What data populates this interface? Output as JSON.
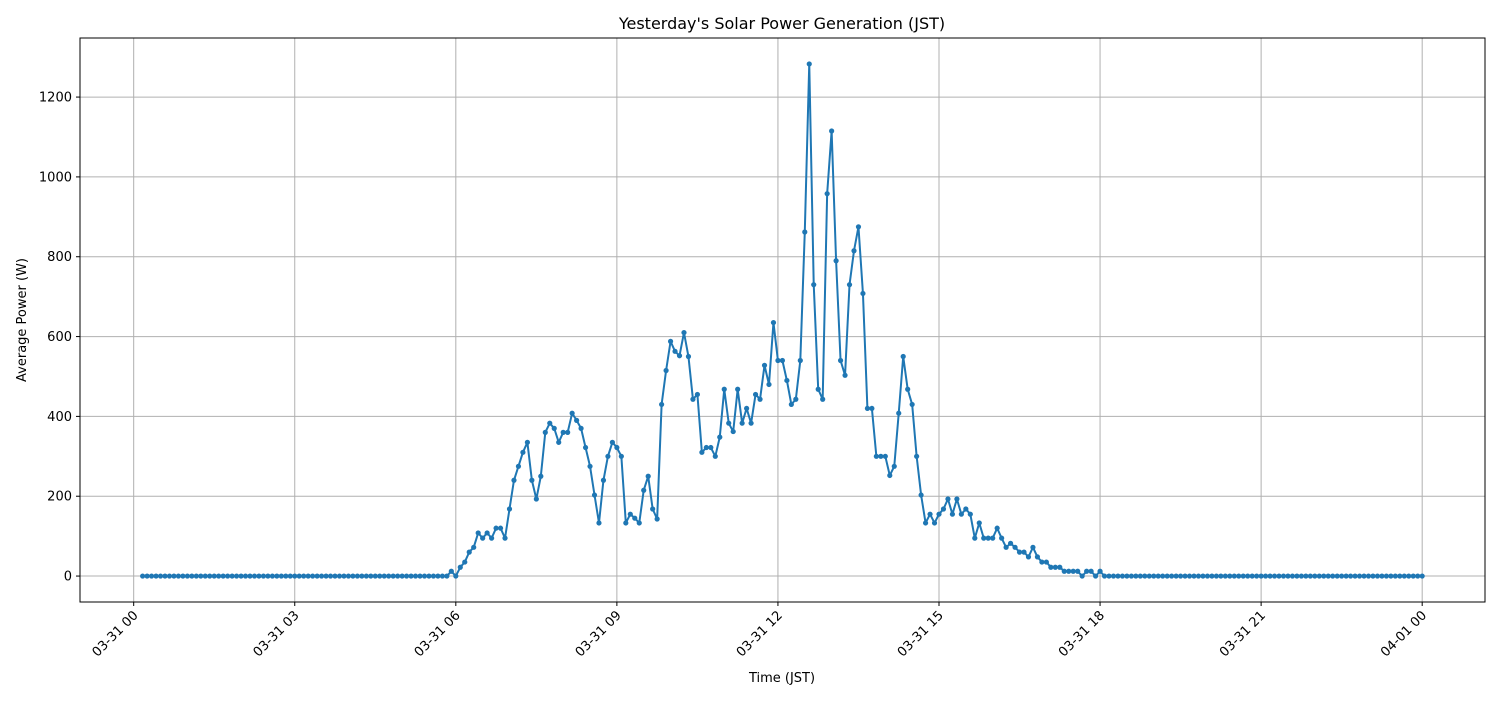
{
  "chart_data": {
    "type": "line",
    "title": "Yesterday's Solar Power Generation (JST)",
    "xlabel": "Time (JST)",
    "ylabel": "Average Power (W)",
    "x_start": "03-31 00:10",
    "x_step_minutes": 5,
    "x_tick_labels": [
      "03-31 00",
      "03-31 03",
      "03-31 06",
      "03-31 09",
      "03-31 12",
      "03-31 15",
      "03-31 18",
      "03-31 21",
      "04-01 00"
    ],
    "y_ticks": [
      0,
      200,
      400,
      600,
      800,
      1000,
      1200
    ],
    "xlim_hours": [
      -1.0,
      25.17
    ],
    "ylim": [
      -65,
      1348
    ],
    "grid": true,
    "marker": "circle",
    "color": "#1f77b4",
    "values": [
      0,
      0,
      0,
      0,
      0,
      0,
      0,
      0,
      0,
      0,
      0,
      0,
      0,
      0,
      0,
      0,
      0,
      0,
      0,
      0,
      0,
      0,
      0,
      0,
      0,
      0,
      0,
      0,
      0,
      0,
      0,
      0,
      0,
      0,
      0,
      0,
      0,
      0,
      0,
      0,
      0,
      0,
      0,
      0,
      0,
      0,
      0,
      0,
      0,
      0,
      0,
      0,
      0,
      0,
      0,
      0,
      0,
      0,
      0,
      0,
      0,
      0,
      0,
      0,
      0,
      0,
      0,
      0,
      0,
      12,
      0,
      22,
      35,
      60,
      72,
      108,
      95,
      108,
      95,
      120,
      120,
      95,
      168,
      240,
      275,
      310,
      335,
      240,
      193,
      250,
      360,
      383,
      370,
      335,
      360,
      360,
      408,
      390,
      370,
      322,
      275,
      203,
      133,
      240,
      300,
      335,
      322,
      300,
      133,
      155,
      145,
      133,
      215,
      250,
      168,
      143,
      430,
      515,
      588,
      563,
      552,
      610,
      550,
      443,
      455,
      310,
      322,
      322,
      300,
      348,
      468,
      383,
      362,
      468,
      383,
      420,
      383,
      455,
      443,
      528,
      480,
      635,
      540,
      540,
      490,
      430,
      443,
      540,
      862,
      1283,
      730,
      468,
      443,
      958,
      1115,
      790,
      540,
      503,
      730,
      815,
      875,
      708,
      420,
      420,
      300,
      300,
      300,
      252,
      275,
      408,
      550,
      468,
      430,
      300,
      203,
      133,
      155,
      133,
      155,
      168,
      193,
      155,
      193,
      155,
      168,
      155,
      95,
      133,
      95,
      95,
      95,
      120,
      95,
      72,
      82,
      72,
      60,
      60,
      48,
      72,
      48,
      35,
      35,
      22,
      22,
      22,
      12,
      12,
      12,
      12,
      0,
      12,
      12,
      0,
      12,
      0,
      0,
      0,
      0,
      0,
      0,
      0,
      0,
      0,
      0,
      0,
      0,
      0,
      0,
      0,
      0,
      0,
      0,
      0,
      0,
      0,
      0,
      0,
      0,
      0,
      0,
      0,
      0,
      0,
      0,
      0,
      0,
      0,
      0,
      0,
      0,
      0,
      0,
      0,
      0,
      0,
      0,
      0,
      0,
      0,
      0,
      0,
      0,
      0,
      0,
      0,
      0,
      0,
      0,
      0,
      0,
      0,
      0,
      0,
      0,
      0,
      0,
      0,
      0,
      0,
      0,
      0,
      0,
      0,
      0,
      0,
      0
    ]
  }
}
